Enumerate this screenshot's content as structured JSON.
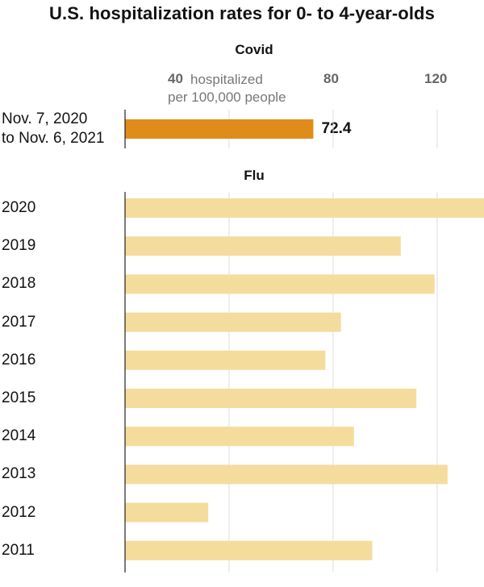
{
  "title": "U.S. hospitalization rates for 0- to 4-year-olds",
  "colors": {
    "covid": "#e08c1a",
    "flu": "#f4dc9d",
    "grid": "#dddddd",
    "axis": "#222222"
  },
  "chart_data": [
    {
      "type": "bar",
      "orientation": "horizontal",
      "title": "Covid",
      "categories": [
        "Nov. 7, 2020 to Nov. 6, 2021"
      ],
      "category_lines": [
        "Nov. 7, 2020",
        "to Nov. 6, 2021"
      ],
      "values": [
        72.4
      ],
      "value_labels": [
        "72.4"
      ],
      "xlim": [
        0,
        138
      ],
      "xticks": [
        40,
        80,
        120
      ],
      "xtick_labels": [
        "40",
        "80",
        "120"
      ],
      "unit_lines": [
        "hospitalized",
        "per 100,000 people"
      ],
      "grid": true
    },
    {
      "type": "bar",
      "orientation": "horizontal",
      "title": "Flu",
      "categories": [
        "2020",
        "2019",
        "2018",
        "2017",
        "2016",
        "2015",
        "2014",
        "2013",
        "2012",
        "2011"
      ],
      "values": [
        138,
        106,
        119,
        83,
        77,
        112,
        88,
        124,
        32,
        95
      ],
      "xlim": [
        0,
        138
      ],
      "xticks": [
        40,
        80,
        120
      ],
      "grid": true
    }
  ]
}
